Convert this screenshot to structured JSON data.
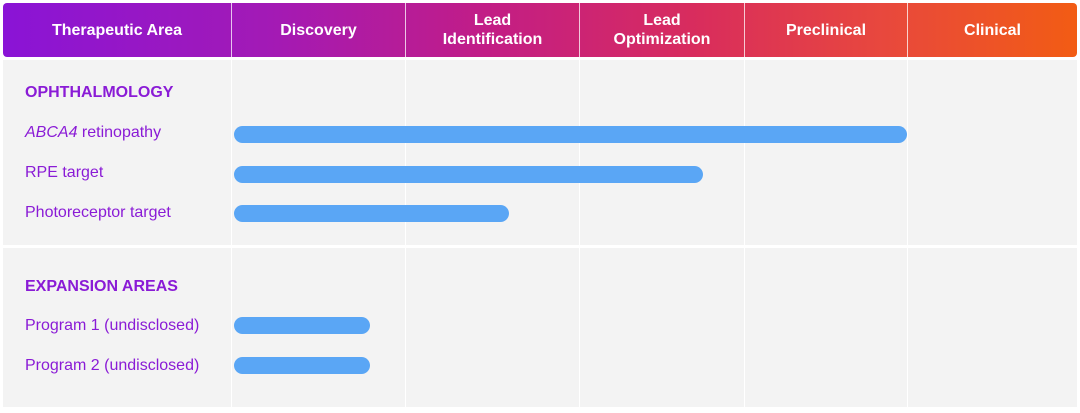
{
  "chart_data": {
    "type": "bar",
    "stages": [
      "Discovery",
      "Lead\nIdentification",
      "Lead\nOptimization",
      "Preclinical",
      "Clinical"
    ],
    "header_first_label": "Therapeutic Area",
    "bar_color": "#5aa6f5",
    "label_color": "#8a1bd6",
    "header_gradient": [
      "#8a14d6",
      "#c21d86",
      "#e8483d",
      "#f25c14"
    ],
    "groups": [
      {
        "title": "OPHTHALMOLOGY",
        "programs": [
          {
            "label_italic": "ABCA4",
            "label": " retinopathy",
            "progress_stages": 4.0
          },
          {
            "label_italic": "",
            "label": "RPE target",
            "progress_stages": 2.75
          },
          {
            "label_italic": "",
            "label": "Photoreceptor target",
            "progress_stages": 1.6
          }
        ]
      },
      {
        "title": "EXPANSION AREAS",
        "programs": [
          {
            "label_italic": "",
            "label": "Program 1 (undisclosed)",
            "progress_stages": 0.8
          },
          {
            "label_italic": "",
            "label": "Program 2 (undisclosed)",
            "progress_stages": 0.8
          }
        ]
      }
    ],
    "xlim": [
      0,
      5
    ]
  }
}
